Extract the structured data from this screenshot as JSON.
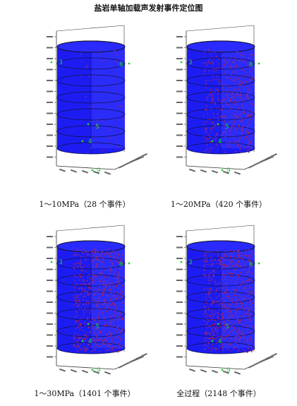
{
  "title": "盐岩单轴加载声发射事件定位图",
  "chart_data": [
    {
      "type": "scatter",
      "caption": "1～10MPa（28 个事件）",
      "event_count": 28,
      "sensor_labels": [
        "3",
        "6",
        "5",
        "4",
        "9"
      ],
      "colors": {
        "cylinder": "#1c1cf2",
        "events": "#cc1a2a",
        "sensors": "#22cc44"
      }
    },
    {
      "type": "scatter",
      "caption": "1～20MPa（420 个事件）",
      "event_count": 420,
      "sensor_labels": [
        "3",
        "6",
        "5",
        "4",
        "9"
      ],
      "colors": {
        "cylinder": "#1c1cf2",
        "events": "#cc1a2a",
        "sensors": "#22cc44"
      }
    },
    {
      "type": "scatter",
      "caption": "1～30MPa（1401 个事件）",
      "event_count": 1401,
      "sensor_labels": [
        "3",
        "6",
        "5",
        "4",
        "9"
      ],
      "colors": {
        "cylinder": "#1c1cf2",
        "events": "#cc1a2a",
        "sensors": "#22cc44"
      }
    },
    {
      "type": "scatter",
      "caption": "全过程（2148 个事件）",
      "event_count": 2148,
      "sensor_labels": [
        "3",
        "6",
        "5",
        "4",
        "9"
      ],
      "colors": {
        "cylinder": "#1c1cf2",
        "events": "#cc1a2a",
        "sensors": "#22cc44"
      }
    }
  ]
}
